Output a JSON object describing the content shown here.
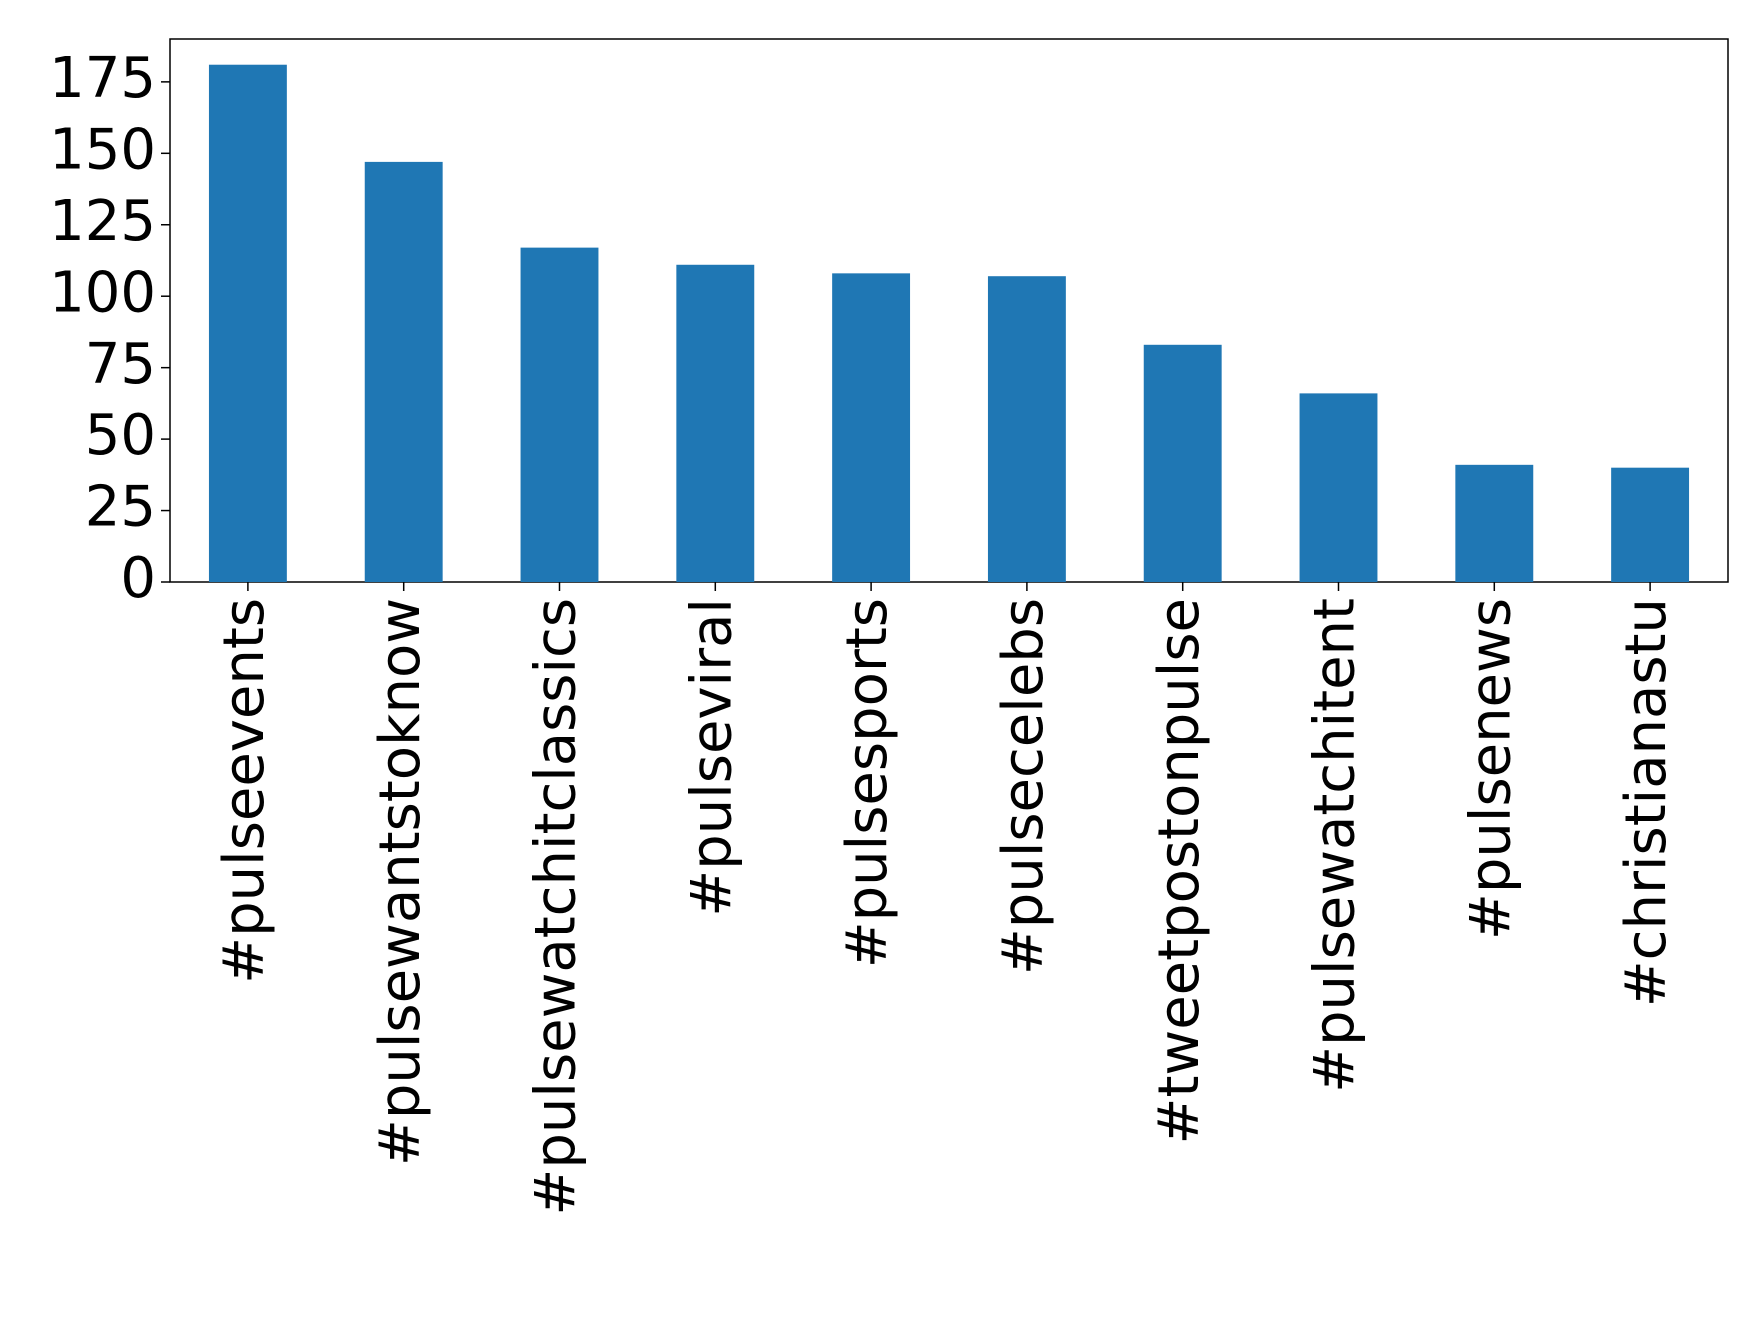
{
  "chart_data": {
    "type": "bar",
    "categories": [
      "#pulseevents",
      "#pulsewantstoknow",
      "#pulsewatchitclassics",
      "#pulseviral",
      "#pulsesports",
      "#pulsecelebs",
      "#tweetpostonpulse",
      "#pulsewatchitent",
      "#pulsenews",
      "#christianastu"
    ],
    "values": [
      181,
      147,
      117,
      111,
      108,
      107,
      83,
      66,
      41,
      40
    ],
    "color": "#1f77b4",
    "ylim": [
      0,
      190
    ],
    "yticks": [
      0,
      25,
      50,
      75,
      100,
      125,
      150,
      175
    ],
    "grid": false
  }
}
